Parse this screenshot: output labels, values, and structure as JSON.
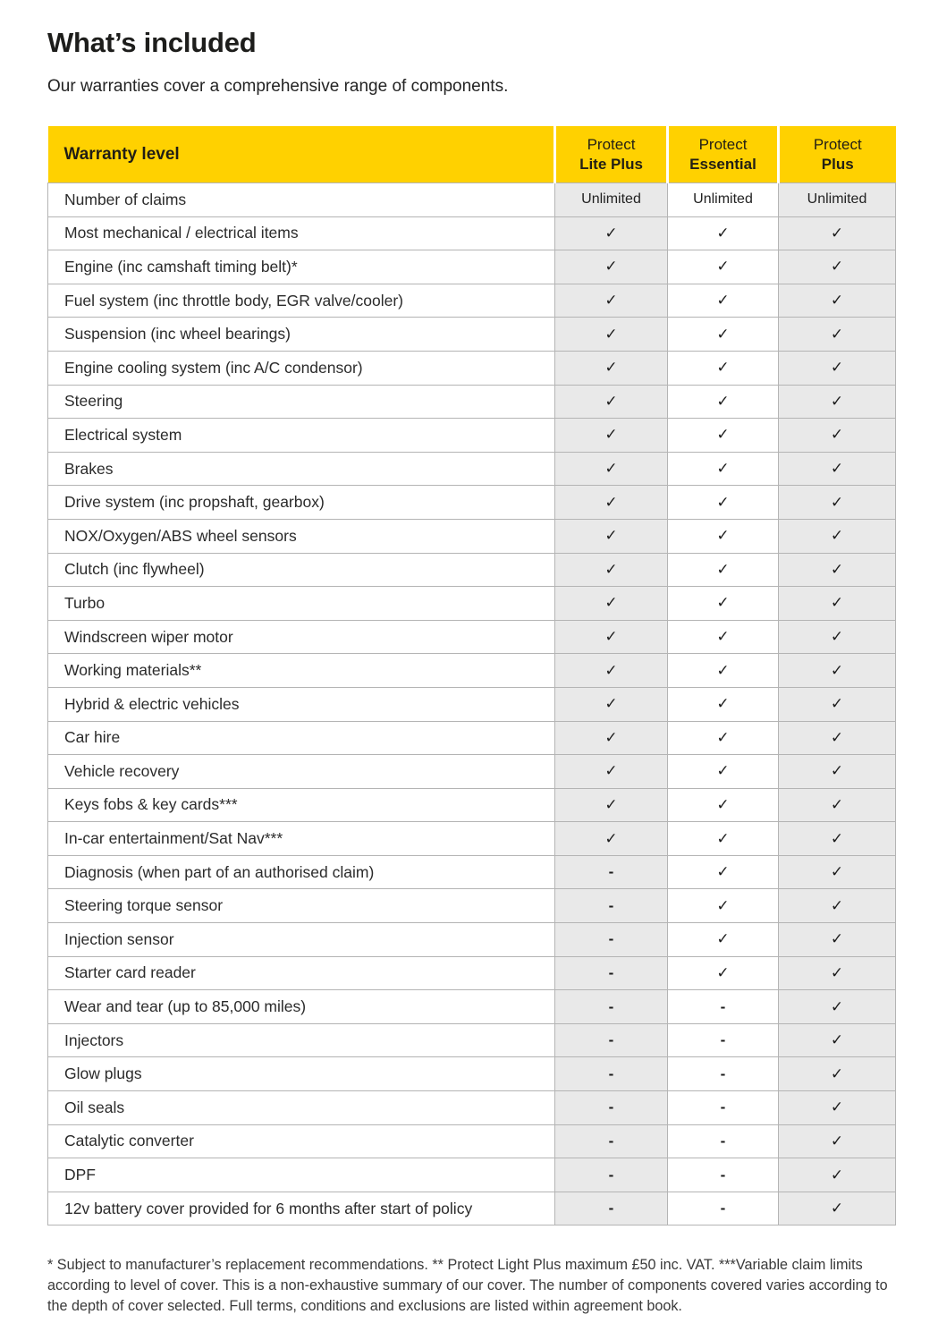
{
  "page": {
    "title": "What’s included",
    "subtitle": "Our warranties cover a comprehensive range of components.",
    "footnote": "* Subject to manufacturer’s replacement recommendations. ** Protect Light Plus maximum £50 inc. VAT. ***Variable claim limits according to level of cover. This is a non-exhaustive summary of our cover. The number of components covered varies according to the depth of cover selected. Full terms, conditions and exclusions are listed within agreement book."
  },
  "colors": {
    "brand_yellow": "#FFD100",
    "plan_column_gray": "#E9E9E9",
    "cell_border": "#B4B4B4",
    "text_dark": "#222222"
  },
  "symbols": {
    "check": "✓",
    "dash": "-"
  },
  "table": {
    "header": {
      "warranty_level": "Warranty level",
      "plans": [
        {
          "line1": "Protect",
          "line2": "Lite Plus"
        },
        {
          "line1": "Protect",
          "line2": "Essential"
        },
        {
          "line1": "Protect",
          "line2": "Plus"
        }
      ]
    },
    "rows": [
      {
        "label": "Number of claims",
        "values": [
          "Unlimited",
          "Unlimited",
          "Unlimited"
        ]
      },
      {
        "label": "Most mechanical / electrical items",
        "values": [
          "check",
          "check",
          "check"
        ]
      },
      {
        "label": "Engine (inc camshaft timing belt)*",
        "values": [
          "check",
          "check",
          "check"
        ]
      },
      {
        "label": "Fuel system (inc throttle body, EGR valve/cooler)",
        "values": [
          "check",
          "check",
          "check"
        ]
      },
      {
        "label": "Suspension (inc wheel bearings)",
        "values": [
          "check",
          "check",
          "check"
        ]
      },
      {
        "label": "Engine cooling system (inc A/C condensor)",
        "values": [
          "check",
          "check",
          "check"
        ]
      },
      {
        "label": "Steering",
        "values": [
          "check",
          "check",
          "check"
        ]
      },
      {
        "label": "Electrical system",
        "values": [
          "check",
          "check",
          "check"
        ]
      },
      {
        "label": "Brakes",
        "values": [
          "check",
          "check",
          "check"
        ]
      },
      {
        "label": "Drive system (inc propshaft, gearbox)",
        "values": [
          "check",
          "check",
          "check"
        ]
      },
      {
        "label": "NOX/Oxygen/ABS wheel sensors",
        "values": [
          "check",
          "check",
          "check"
        ]
      },
      {
        "label": "Clutch (inc flywheel)",
        "values": [
          "check",
          "check",
          "check"
        ]
      },
      {
        "label": "Turbo",
        "values": [
          "check",
          "check",
          "check"
        ]
      },
      {
        "label": "Windscreen wiper motor",
        "values": [
          "check",
          "check",
          "check"
        ]
      },
      {
        "label": "Working materials**",
        "values": [
          "check",
          "check",
          "check"
        ]
      },
      {
        "label": "Hybrid & electric vehicles",
        "values": [
          "check",
          "check",
          "check"
        ]
      },
      {
        "label": "Car hire",
        "values": [
          "check",
          "check",
          "check"
        ]
      },
      {
        "label": "Vehicle recovery",
        "values": [
          "check",
          "check",
          "check"
        ]
      },
      {
        "label": "Keys fobs & key cards***",
        "values": [
          "check",
          "check",
          "check"
        ]
      },
      {
        "label": "In-car entertainment/Sat Nav***",
        "values": [
          "check",
          "check",
          "check"
        ]
      },
      {
        "label": "Diagnosis (when part of an authorised claim)",
        "values": [
          "dash",
          "check",
          "check"
        ]
      },
      {
        "label": "Steering torque sensor",
        "values": [
          "dash",
          "check",
          "check"
        ]
      },
      {
        "label": "Injection sensor",
        "values": [
          "dash",
          "check",
          "check"
        ]
      },
      {
        "label": "Starter card reader",
        "values": [
          "dash",
          "check",
          "check"
        ]
      },
      {
        "label": "Wear and tear (up to 85,000 miles)",
        "values": [
          "dash",
          "dash",
          "check"
        ]
      },
      {
        "label": "Injectors",
        "values": [
          "dash",
          "dash",
          "check"
        ]
      },
      {
        "label": "Glow plugs",
        "values": [
          "dash",
          "dash",
          "check"
        ]
      },
      {
        "label": "Oil seals",
        "values": [
          "dash",
          "dash",
          "check"
        ]
      },
      {
        "label": "Catalytic converter",
        "values": [
          "dash",
          "dash",
          "check"
        ]
      },
      {
        "label": "DPF",
        "values": [
          "dash",
          "dash",
          "check"
        ]
      },
      {
        "label": "12v battery cover provided for 6 months after start of policy",
        "values": [
          "dash",
          "dash",
          "check"
        ]
      }
    ]
  }
}
